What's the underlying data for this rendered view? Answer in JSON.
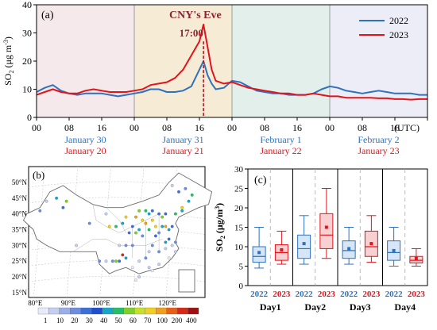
{
  "panels": {
    "a_label": "(a)",
    "b_label": "(b)",
    "c_label": "(c)"
  },
  "chart_data": [
    {
      "type": "line",
      "annotations": {
        "event": "CNY's Eve",
        "time": "17:00"
      },
      "ylabel": "SO2 (μg m-3)",
      "ylim": [
        0,
        40
      ],
      "y_ticks": [
        "0",
        "10",
        "20",
        "30",
        "40"
      ],
      "x_tick_labels": [
        "00",
        "08",
        "16",
        "00",
        "08",
        "16",
        "00",
        "08",
        "16",
        "00",
        "08",
        "16"
      ],
      "x_unit_label": "(UTC)",
      "day_labels_2022": [
        "January 30",
        "January 31",
        "February 1",
        "February 2"
      ],
      "day_labels_2023": [
        "January 20",
        "January 21",
        "January 22",
        "January 23"
      ],
      "legend": [
        "2022",
        "2023"
      ],
      "colors": {
        "s2022": "#2e72be",
        "s2023": "#e3131b",
        "band1": "#f5e9ec",
        "band2": "#f6ecd6",
        "band3": "#e3efea",
        "band4": "#ecedf6"
      },
      "x": [
        0,
        2,
        4,
        6,
        8,
        10,
        12,
        14,
        16,
        18,
        20,
        22,
        24,
        26,
        28,
        30,
        32,
        34,
        36,
        38,
        40,
        41,
        42,
        43,
        44,
        46,
        48,
        50,
        52,
        54,
        56,
        58,
        60,
        62,
        64,
        66,
        68,
        70,
        72,
        74,
        76,
        78,
        80,
        82,
        84,
        86,
        88,
        90,
        92,
        94,
        96
      ],
      "series": [
        {
          "name": "2022",
          "values": [
            9,
            10.5,
            11.5,
            9.5,
            8.5,
            8,
            8.5,
            8.5,
            8.5,
            8,
            7.5,
            8,
            8.5,
            9,
            10,
            10,
            9,
            9,
            9.5,
            11,
            17,
            20,
            15,
            12,
            10,
            10.5,
            13,
            12.5,
            11,
            9.5,
            9,
            8.5,
            8.5,
            8,
            8,
            8,
            8.5,
            10,
            11,
            10.5,
            9.5,
            9,
            8.5,
            9,
            9.5,
            9,
            8.5,
            8.5,
            8.5,
            8,
            8
          ]
        },
        {
          "name": "2023",
          "values": [
            8,
            9,
            10,
            9,
            8.5,
            8.5,
            9.5,
            10,
            9.5,
            9,
            9,
            9,
            9.5,
            10,
            11.5,
            12,
            12.5,
            14,
            17,
            22,
            27,
            33,
            25,
            17,
            13,
            12,
            12.5,
            11.5,
            10.5,
            10,
            9.5,
            9,
            8.5,
            8.5,
            8,
            8,
            8.5,
            8,
            7.5,
            7.5,
            7,
            7,
            7,
            7,
            6.8,
            6.8,
            6.5,
            6.5,
            6.3,
            6.5,
            6.5
          ]
        }
      ]
    },
    {
      "type": "scatter",
      "lon_labels": [
        "80°E",
        "90°E",
        "100°E",
        "110°E",
        "120°E"
      ],
      "lat_labels": [
        "50°N",
        "45°N",
        "40°N",
        "35°N",
        "30°N",
        "25°N",
        "20°N",
        "15°N"
      ],
      "colorbar_ticks": [
        "1",
        "10",
        "20",
        "30",
        "40",
        "50",
        "60",
        "70",
        "100",
        "200",
        "400"
      ],
      "colorbar_colors": [
        "#e8ecfa",
        "#c4cff2",
        "#9aaeea",
        "#6e8ee0",
        "#3d6fd8",
        "#1f4ed0",
        "#14a8c8",
        "#22c06a",
        "#7fd02a",
        "#c8e02a",
        "#f0d020",
        "#f0a020",
        "#e86018",
        "#d82818",
        "#a01010"
      ],
      "points": [
        [
          121,
          31,
          25
        ],
        [
          120,
          30,
          18
        ],
        [
          119,
          32,
          30
        ],
        [
          118,
          31,
          45
        ],
        [
          117,
          39,
          60
        ],
        [
          116,
          40,
          35
        ],
        [
          114,
          38,
          80
        ],
        [
          113,
          35,
          55
        ],
        [
          112,
          37,
          150
        ],
        [
          111,
          38,
          90
        ],
        [
          110,
          35,
          40
        ],
        [
          109,
          34,
          65
        ],
        [
          108,
          36,
          30
        ],
        [
          106,
          30,
          20
        ],
        [
          104,
          30,
          15
        ],
        [
          103,
          36,
          50
        ],
        [
          101,
          36,
          70
        ],
        [
          100,
          40,
          10
        ],
        [
          95,
          37,
          20
        ],
        [
          88,
          44,
          60
        ],
        [
          87,
          42,
          30
        ],
        [
          85,
          45,
          45
        ],
        [
          82,
          44,
          15
        ],
        [
          80,
          41,
          25
        ],
        [
          123,
          42,
          70
        ],
        [
          125,
          44,
          40
        ],
        [
          126,
          46,
          55
        ],
        [
          124,
          48,
          20
        ],
        [
          122,
          47,
          35
        ],
        [
          120,
          49,
          10
        ],
        [
          118,
          36,
          120
        ],
        [
          117,
          36,
          40
        ],
        [
          116,
          34,
          25
        ],
        [
          115,
          33,
          30
        ],
        [
          114,
          30,
          20
        ],
        [
          113,
          28,
          15
        ],
        [
          112,
          26,
          20
        ],
        [
          110,
          25,
          12
        ],
        [
          108,
          23,
          8
        ],
        [
          106,
          26,
          45
        ],
        [
          105,
          27,
          200
        ],
        [
          104,
          25,
          30
        ],
        [
          103,
          25,
          60
        ],
        [
          102,
          25,
          20
        ],
        [
          100,
          25,
          15
        ],
        [
          113,
          23,
          10
        ],
        [
          114,
          22,
          8
        ],
        [
          116,
          24,
          12
        ],
        [
          119,
          26,
          8
        ],
        [
          110,
          20,
          10
        ],
        [
          109,
          19,
          5
        ],
        [
          121,
          28,
          12
        ],
        [
          120,
          36,
          30
        ],
        [
          119,
          35,
          40
        ],
        [
          115,
          36,
          75
        ],
        [
          111,
          33,
          25
        ],
        [
          107,
          34,
          35
        ],
        [
          105,
          37,
          45
        ],
        [
          106,
          39,
          90
        ],
        [
          110,
          41,
          60
        ],
        [
          112,
          41,
          50
        ],
        [
          114,
          41,
          35
        ],
        [
          113,
          40,
          45
        ],
        [
          109,
          39,
          100
        ],
        [
          118,
          40,
          30
        ],
        [
          121,
          40,
          50
        ],
        [
          123,
          41,
          45
        ],
        [
          116,
          28,
          20
        ],
        [
          118,
          29,
          18
        ],
        [
          108,
          30,
          25
        ],
        [
          98,
          25,
          20
        ],
        [
          91,
          30,
          10
        ]
      ]
    },
    {
      "type": "box",
      "ylabel": "SO2 (μg/m3)",
      "ylim": [
        0,
        30
      ],
      "y_ticks": [
        "0",
        "5",
        "10",
        "15",
        "20",
        "25",
        "30"
      ],
      "categories": [
        "Day1",
        "Day2",
        "Day3",
        "Day4"
      ],
      "group_labels": [
        "2022",
        "2023"
      ],
      "colors": {
        "b2022": "#2e72be",
        "b2023": "#e3131b",
        "f2022": "#d6e6f6",
        "f2023": "#f8d0d2"
      },
      "boxes": [
        {
          "day": "Day1",
          "year": "2022",
          "min": 4.5,
          "q1": 6,
          "median": 7.5,
          "q3": 10,
          "max": 15,
          "mean": 8.5
        },
        {
          "day": "Day1",
          "year": "2023",
          "min": 5.5,
          "q1": 6.5,
          "median": 8.5,
          "q3": 10.5,
          "max": 14,
          "mean": 9.2
        },
        {
          "day": "Day2",
          "year": "2022",
          "min": 5.5,
          "q1": 7,
          "median": 9.5,
          "q3": 13,
          "max": 18,
          "mean": 10.8
        },
        {
          "day": "Day2",
          "year": "2023",
          "min": 7,
          "q1": 9.5,
          "median": 13,
          "q3": 18.5,
          "max": 25,
          "mean": 15
        },
        {
          "day": "Day3",
          "year": "2022",
          "min": 5.5,
          "q1": 7,
          "median": 9,
          "q3": 11.5,
          "max": 15,
          "mean": 9.5
        },
        {
          "day": "Day3",
          "year": "2023",
          "min": 6,
          "q1": 7.5,
          "median": 10,
          "q3": 14,
          "max": 18,
          "mean": 10.8
        },
        {
          "day": "Day4",
          "year": "2022",
          "min": 5,
          "q1": 6.5,
          "median": 8.5,
          "q3": 11.5,
          "max": 15,
          "mean": 9
        },
        {
          "day": "Day4",
          "year": "2023",
          "min": 5,
          "q1": 5.8,
          "median": 6.5,
          "q3": 7.5,
          "max": 9.5,
          "mean": 7
        }
      ]
    }
  ]
}
